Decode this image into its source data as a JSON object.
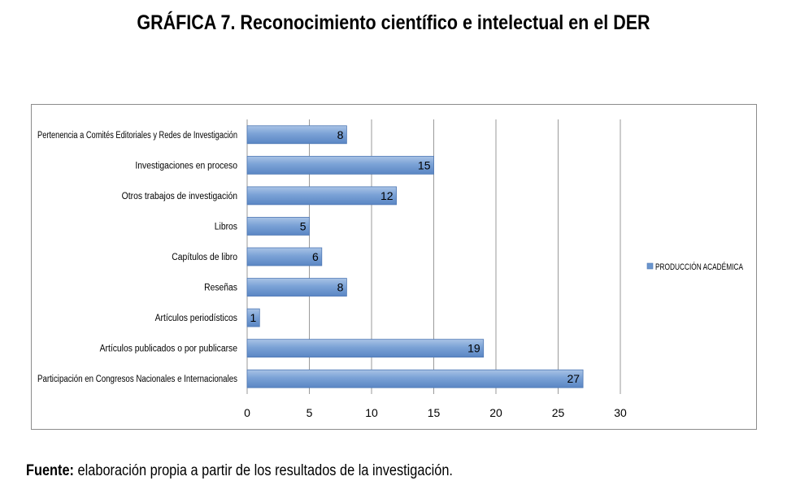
{
  "title": {
    "lead": "GRÁFICA 7.",
    "rest": "Reconocimiento científico e intelectual en el DER"
  },
  "source": {
    "label": "Fuente:",
    "text": "elaboración propia a partir de los resultados de la investigación."
  },
  "chart_data": {
    "type": "bar",
    "orientation": "horizontal",
    "categories": [
      "Pertenencia a Comités Editoriales y Redes de Investigación",
      "Investigaciones en proceso",
      "Otros trabajos de investigación",
      "Libros",
      "Capítulos de libro",
      "Reseñas",
      "Artículos periodísticos",
      "Artículos publicados o por publicarse",
      "Participación en Congresos Nacionales e Internacionales"
    ],
    "series": [
      {
        "name": "PRODUCCIÓN ACADÉMICA",
        "values": [
          8,
          15,
          12,
          5,
          6,
          8,
          1,
          19,
          27
        ],
        "color": "#6a95cd"
      }
    ],
    "xlim": [
      0,
      30
    ],
    "xticks": [
      0,
      5,
      10,
      15,
      20,
      25,
      30
    ],
    "grid": true,
    "legend": "right",
    "data_labels": true
  }
}
